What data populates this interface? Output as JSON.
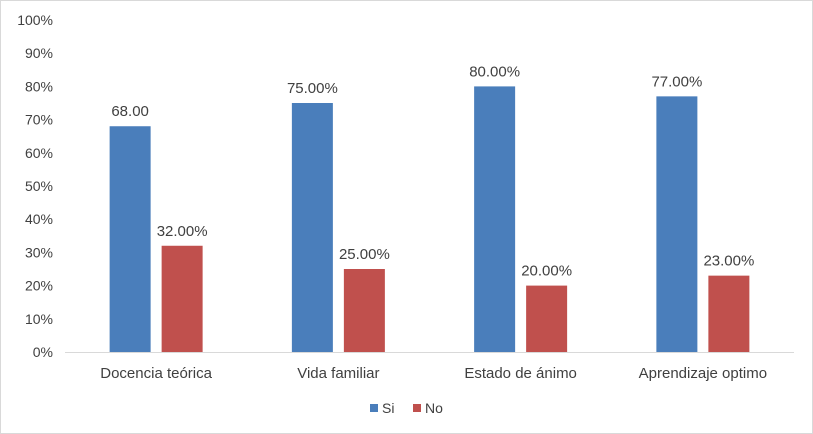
{
  "chart_data": {
    "type": "bar",
    "title": "",
    "xlabel": "",
    "ylabel": "",
    "categories": [
      "Docencia teórica",
      "Vida familiar",
      "Estado de ánimo",
      "Aprendizaje optimo"
    ],
    "series": [
      {
        "name": "Si",
        "color": "#4a7ebb",
        "values": [
          68,
          75,
          80,
          77
        ],
        "labels": [
          "68.00",
          "75.00%",
          "80.00%",
          "77.00%"
        ]
      },
      {
        "name": "No",
        "color": "#c0504d",
        "values": [
          32,
          25,
          20,
          23
        ],
        "labels": [
          "32.00%",
          "25.00%",
          "20.00%",
          "23.00%"
        ]
      }
    ],
    "ylim": [
      0,
      100
    ],
    "yticks": [
      "0%",
      "10%",
      "20%",
      "30%",
      "40%",
      "50%",
      "60%",
      "70%",
      "80%",
      "90%",
      "100%"
    ],
    "grid": false,
    "legend_position": "bottom"
  }
}
